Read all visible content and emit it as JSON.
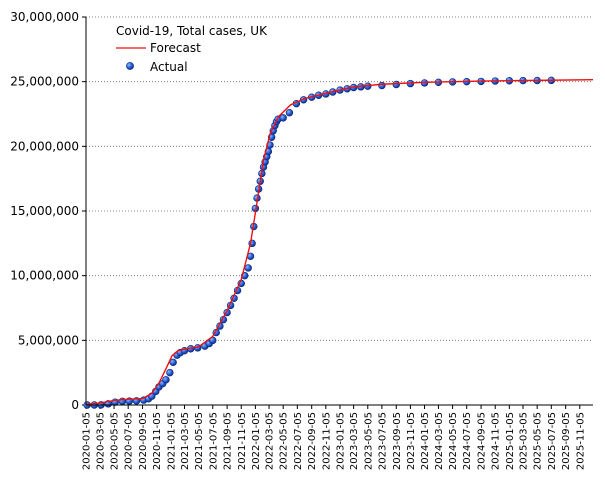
{
  "chart_data": {
    "type": "line",
    "title": "",
    "xlabel": "",
    "ylabel": "",
    "x_axis_type": "date",
    "xlim": [
      "2020-01-05",
      "2026-01-01"
    ],
    "ylim": [
      0,
      30000000
    ],
    "grid": "horizontal-dotted",
    "legend": {
      "title": "Covid-19, Total cases, UK",
      "placement": "top-left"
    },
    "y_ticks": [
      {
        "value": 0,
        "label": "0"
      },
      {
        "value": 5000000,
        "label": "5,000,000"
      },
      {
        "value": 10000000,
        "label": "10,000,000"
      },
      {
        "value": 15000000,
        "label": "15,000,000"
      },
      {
        "value": 20000000,
        "label": "20,000,000"
      },
      {
        "value": 25000000,
        "label": "25,000,000"
      },
      {
        "value": 30000000,
        "label": "30,000,000"
      }
    ],
    "x_ticks": [
      "2020-01-05",
      "2020-03-05",
      "2020-05-05",
      "2020-07-05",
      "2020-09-05",
      "2020-11-05",
      "2021-01-05",
      "2021-03-05",
      "2021-05-05",
      "2021-07-05",
      "2021-09-05",
      "2021-11-05",
      "2022-01-05",
      "2022-03-05",
      "2022-05-05",
      "2022-07-05",
      "2022-09-05",
      "2022-11-05",
      "2023-01-05",
      "2023-03-05",
      "2023-05-05",
      "2023-07-05",
      "2023-09-05",
      "2023-11-05",
      "2024-01-05",
      "2024-03-05",
      "2024-05-05",
      "2024-07-05",
      "2024-09-05",
      "2024-11-05",
      "2025-01-05",
      "2025-03-05",
      "2025-05-05",
      "2025-07-05",
      "2025-09-05",
      "2025-11-05"
    ],
    "series": [
      {
        "name": "Forecast",
        "kind": "line",
        "color": "#ee1111",
        "points": [
          [
            "2020-01-05",
            50000
          ],
          [
            "2020-03-05",
            150000
          ],
          [
            "2020-05-05",
            350000
          ],
          [
            "2020-07-05",
            450000
          ],
          [
            "2020-09-05",
            500000
          ],
          [
            "2020-10-15",
            900000
          ],
          [
            "2020-11-15",
            1700000
          ],
          [
            "2020-12-15",
            2800000
          ],
          [
            "2021-01-10",
            3800000
          ],
          [
            "2021-02-05",
            4200000
          ],
          [
            "2021-03-15",
            4350000
          ],
          [
            "2021-05-05",
            4500000
          ],
          [
            "2021-07-05",
            5300000
          ],
          [
            "2021-09-05",
            7300000
          ],
          [
            "2021-11-05",
            9700000
          ],
          [
            "2021-12-15",
            12500000
          ],
          [
            "2022-01-15",
            16000000
          ],
          [
            "2022-02-10",
            19000000
          ],
          [
            "2022-03-10",
            21000000
          ],
          [
            "2022-04-15",
            22300000
          ],
          [
            "2022-06-05",
            23200000
          ],
          [
            "2022-08-05",
            23700000
          ],
          [
            "2022-11-05",
            24100000
          ],
          [
            "2023-03-05",
            24600000
          ],
          [
            "2023-07-05",
            24800000
          ],
          [
            "2024-01-05",
            24950000
          ],
          [
            "2024-09-05",
            25050000
          ],
          [
            "2025-05-05",
            25100000
          ],
          [
            "2026-01-01",
            25150000
          ]
        ]
      },
      {
        "name": "Actual",
        "kind": "scatter",
        "color": "#1a4fc4",
        "points": [
          [
            "2020-01-10",
            0
          ],
          [
            "2020-02-10",
            0
          ],
          [
            "2020-03-10",
            10000
          ],
          [
            "2020-04-10",
            90000
          ],
          [
            "2020-05-10",
            220000
          ],
          [
            "2020-06-10",
            280000
          ],
          [
            "2020-07-10",
            300000
          ],
          [
            "2020-08-10",
            320000
          ],
          [
            "2020-09-10",
            380000
          ],
          [
            "2020-10-01",
            480000
          ],
          [
            "2020-10-15",
            680000
          ],
          [
            "2020-11-01",
            1050000
          ],
          [
            "2020-11-15",
            1400000
          ],
          [
            "2020-12-01",
            1650000
          ],
          [
            "2020-12-15",
            1950000
          ],
          [
            "2021-01-01",
            2500000
          ],
          [
            "2021-01-15",
            3300000
          ],
          [
            "2021-02-01",
            3850000
          ],
          [
            "2021-02-15",
            4050000
          ],
          [
            "2021-03-05",
            4200000
          ],
          [
            "2021-04-01",
            4350000
          ],
          [
            "2021-05-01",
            4420000
          ],
          [
            "2021-06-01",
            4550000
          ],
          [
            "2021-06-20",
            4750000
          ],
          [
            "2021-07-05",
            5000000
          ],
          [
            "2021-07-20",
            5600000
          ],
          [
            "2021-08-05",
            6100000
          ],
          [
            "2021-08-20",
            6600000
          ],
          [
            "2021-09-05",
            7150000
          ],
          [
            "2021-09-20",
            7700000
          ],
          [
            "2021-10-05",
            8250000
          ],
          [
            "2021-10-20",
            8850000
          ],
          [
            "2021-11-05",
            9400000
          ],
          [
            "2021-11-20",
            10000000
          ],
          [
            "2021-12-05",
            10600000
          ],
          [
            "2021-12-15",
            11500000
          ],
          [
            "2021-12-22",
            12500000
          ],
          [
            "2021-12-29",
            13800000
          ],
          [
            "2022-01-05",
            15200000
          ],
          [
            "2022-01-12",
            16000000
          ],
          [
            "2022-01-19",
            16700000
          ],
          [
            "2022-01-26",
            17300000
          ],
          [
            "2022-02-02",
            17900000
          ],
          [
            "2022-02-09",
            18400000
          ],
          [
            "2022-02-16",
            18800000
          ],
          [
            "2022-02-23",
            19200000
          ],
          [
            "2022-03-02",
            19600000
          ],
          [
            "2022-03-09",
            20100000
          ],
          [
            "2022-03-16",
            20700000
          ],
          [
            "2022-03-23",
            21200000
          ],
          [
            "2022-03-30",
            21600000
          ],
          [
            "2022-04-06",
            21900000
          ],
          [
            "2022-04-13",
            22100000
          ],
          [
            "2022-05-05",
            22200000
          ],
          [
            "2022-06-01",
            22600000
          ],
          [
            "2022-07-01",
            23300000
          ],
          [
            "2022-08-01",
            23600000
          ],
          [
            "2022-09-05",
            23800000
          ],
          [
            "2022-10-05",
            23950000
          ],
          [
            "2022-11-05",
            24050000
          ],
          [
            "2022-12-05",
            24200000
          ],
          [
            "2023-01-05",
            24350000
          ],
          [
            "2023-02-05",
            24450000
          ],
          [
            "2023-03-05",
            24550000
          ],
          [
            "2023-04-05",
            24600000
          ],
          [
            "2023-05-05",
            24650000
          ],
          [
            "2023-07-05",
            24700000
          ],
          [
            "2023-09-05",
            24780000
          ],
          [
            "2023-11-05",
            24850000
          ],
          [
            "2024-01-05",
            24900000
          ],
          [
            "2024-03-05",
            24950000
          ],
          [
            "2024-05-05",
            24980000
          ],
          [
            "2024-07-05",
            25000000
          ],
          [
            "2024-09-05",
            25020000
          ],
          [
            "2024-11-05",
            25050000
          ],
          [
            "2025-01-05",
            25070000
          ],
          [
            "2025-03-05",
            25080000
          ],
          [
            "2025-05-05",
            25090000
          ],
          [
            "2025-07-05",
            25100000
          ]
        ]
      }
    ]
  }
}
